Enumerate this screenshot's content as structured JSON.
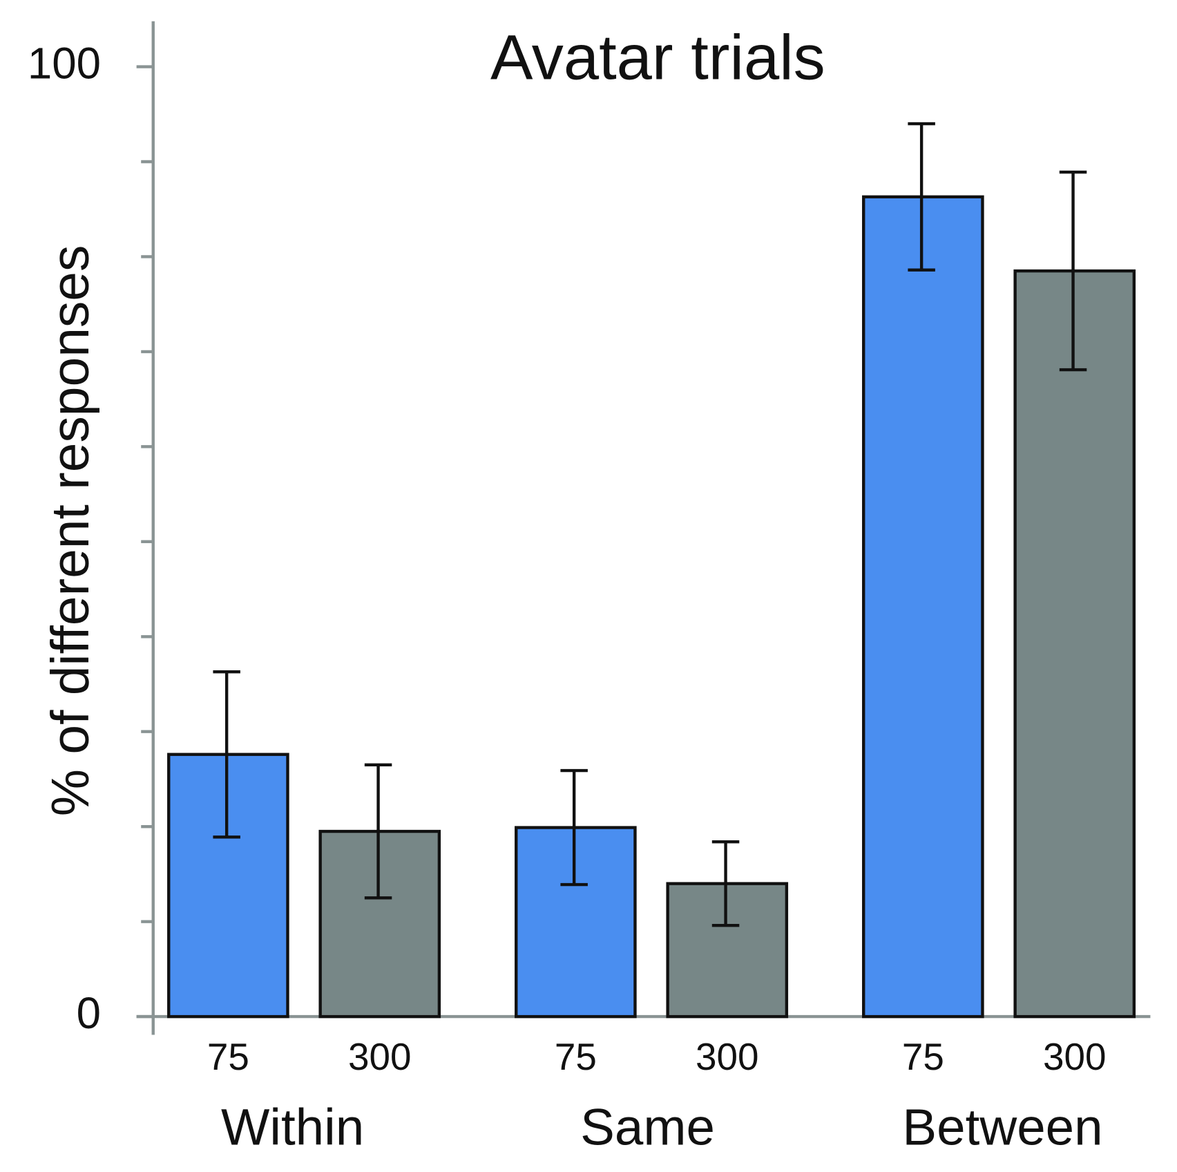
{
  "chart_data": {
    "type": "bar",
    "title": "Avatar trials",
    "y_label": "% of different responses",
    "categories": [
      "Within",
      "Same",
      "Between"
    ],
    "series": [
      {
        "name": "75",
        "color": "#4a8ef0",
        "values": [
          27.6,
          19.9,
          86.3
        ],
        "errors": [
          8.7,
          6.0,
          7.7
        ]
      },
      {
        "name": "300",
        "color": "#778787",
        "values": [
          19.5,
          14.0,
          78.5
        ],
        "errors": [
          7.0,
          4.4,
          10.4
        ]
      }
    ],
    "ylim": [
      0,
      100
    ],
    "yticks": [
      0,
      100
    ],
    "minor_yticks": [
      10,
      20,
      30,
      40,
      50,
      60,
      70,
      80,
      90
    ]
  }
}
